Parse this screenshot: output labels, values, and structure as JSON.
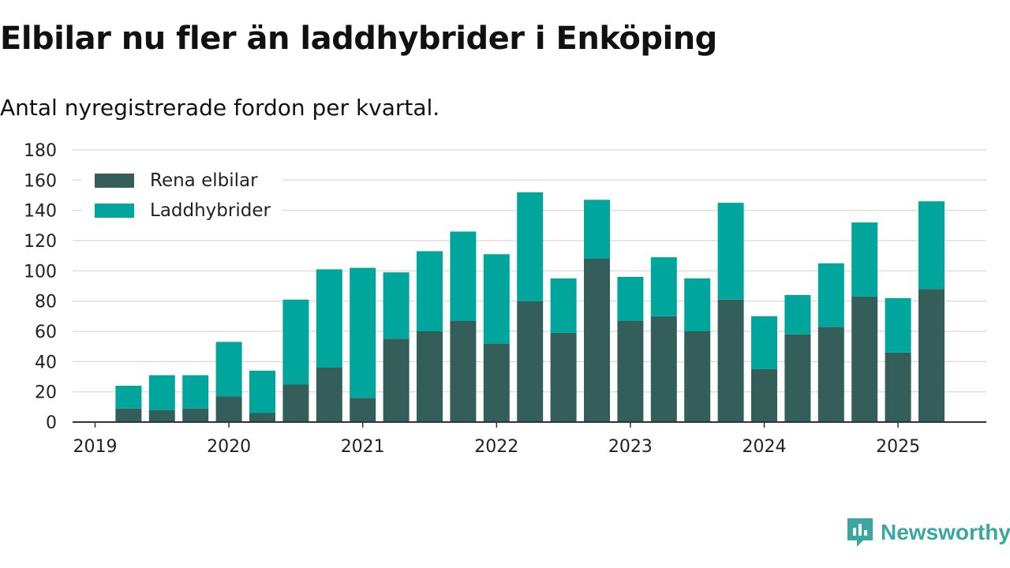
{
  "title": "Elbilar nu fler än laddhybrider i Enköping",
  "subtitle": "Antal nyregistrerade fordon per kvartal.",
  "brand": {
    "name": "Newsworthy",
    "icon": "newsworthy-logo-icon",
    "color": "#3aa8a0"
  },
  "chart_data": {
    "type": "bar",
    "stacked": true,
    "categories": [
      "2019 Q1",
      "2019 Q2",
      "2019 Q3",
      "2019 Q4",
      "2020 Q1",
      "2020 Q2",
      "2020 Q3",
      "2020 Q4",
      "2021 Q1",
      "2021 Q2",
      "2021 Q3",
      "2021 Q4",
      "2022 Q1",
      "2022 Q2",
      "2022 Q3",
      "2022 Q4",
      "2023 Q1",
      "2023 Q2",
      "2023 Q3",
      "2023 Q4",
      "2024 Q1",
      "2024 Q2",
      "2024 Q3",
      "2024 Q4",
      "2025 Q1",
      "2025 Q2",
      "2025 Q3"
    ],
    "series": [
      {
        "name": "Rena elbilar",
        "color": "#335e5a",
        "values": [
          null,
          9,
          8,
          9,
          17,
          6,
          25,
          36,
          16,
          55,
          60,
          67,
          52,
          80,
          59,
          108,
          67,
          70,
          60,
          81,
          35,
          58,
          63,
          83,
          46,
          88,
          null
        ]
      },
      {
        "name": "Laddhybrider",
        "color": "#00a69c",
        "values": [
          null,
          15,
          23,
          22,
          36,
          28,
          56,
          65,
          86,
          44,
          53,
          59,
          59,
          72,
          36,
          39,
          29,
          39,
          35,
          64,
          35,
          26,
          42,
          49,
          36,
          58,
          null
        ]
      }
    ],
    "x_tick_labels": [
      "2019",
      "2020",
      "2021",
      "2022",
      "2023",
      "2024",
      "2025"
    ],
    "y_ticks": [
      0,
      20,
      40,
      60,
      80,
      100,
      120,
      140,
      160,
      180
    ],
    "ylim": [
      0,
      180
    ],
    "grid": true,
    "legend": "top-left"
  }
}
